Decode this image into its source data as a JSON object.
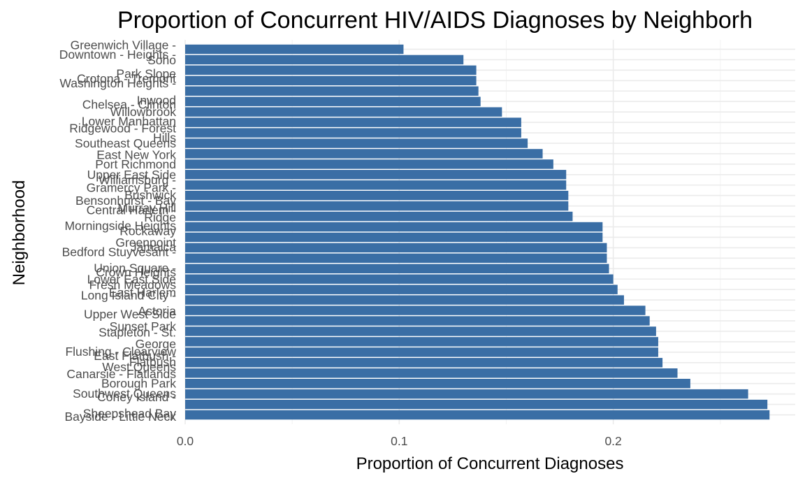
{
  "chart_data": {
    "type": "bar",
    "orientation": "horizontal",
    "title": "Proportion of Concurrent HIV/AIDS Diagnoses by Neighborh",
    "xlabel": "Proportion of Concurrent Diagnoses",
    "ylabel": "Neighborhood",
    "xlim": [
      0,
      0.285
    ],
    "xticks": [
      0.0,
      0.1,
      0.2
    ],
    "xtick_labels": [
      "0.0",
      "0.1",
      "0.2"
    ],
    "grid": true,
    "bar_color": "#3a6ea5",
    "categories": [
      "Greenwich Village - Soho",
      "Downtown - Heights - Slope",
      "Crotona - Tremont",
      "Park Slope",
      "Washington Heights - Inwood",
      "Chelsea - Clinton",
      "Willowbrook",
      "Lower Manhattan",
      "Ridgewood - Forest Hills",
      "Southeast Queens",
      "East New York",
      "Port Richmond",
      "Upper East Side",
      "Williamsburg - Bushwick",
      "Gramercy Park - Murray Hill",
      "Bensonhurst - Bay Ridge",
      "Central Harlem - Morningside Heights",
      "Rockaway",
      "Greenpoint",
      "Bedford Stuyvesant - Crown Heights",
      "Jamaica",
      "Union Square - Lower East Side",
      "Fresh Meadows",
      "Long Island City - Astoria",
      "East Harlem",
      "Upper West Side",
      "Sunset Park",
      "Stapleton - St. George",
      "Flushing - Clearview",
      "East Flatbush - Flatbush",
      "West Queens",
      "Canarsie - Flatlands",
      "Borough Park",
      "Southwest Queens",
      "Coney Island - Sheepshead Bay",
      "Bayside - Little Neck"
    ],
    "values": [
      0.102,
      0.13,
      0.136,
      0.136,
      0.137,
      0.138,
      0.148,
      0.157,
      0.157,
      0.16,
      0.167,
      0.172,
      0.178,
      0.178,
      0.179,
      0.179,
      0.181,
      0.195,
      0.195,
      0.197,
      0.197,
      0.198,
      0.2,
      0.202,
      0.205,
      0.215,
      0.217,
      0.22,
      0.221,
      0.221,
      0.223,
      0.23,
      0.236,
      0.263,
      0.272,
      0.273
    ],
    "visible_labels": [
      {
        "text": "Greenwich Village -",
        "ref_index": 0,
        "offset": -0.4
      },
      {
        "text": "Downtown - Heights -",
        "ref_index": 0,
        "offset": 0.5
      },
      {
        "text": "Soho",
        "ref_index": 1,
        "offset": 0.05
      },
      {
        "text": "Park Slope",
        "ref_index": 2,
        "offset": 0.35
      },
      {
        "text": "Crotona - Tremont",
        "ref_index": 2,
        "offset": 0.8
      },
      {
        "text": "Washington Heights -",
        "ref_index": 3,
        "offset": 0.25
      },
      {
        "text": "Inwood",
        "ref_index": 4,
        "offset": 0.9
      },
      {
        "text": "Chelsea - Clinton",
        "ref_index": 5,
        "offset": 0.3
      },
      {
        "text": "Willowbrook",
        "ref_index": 6,
        "offset": 0.0
      },
      {
        "text": "Lower Manhattan",
        "ref_index": 7,
        "offset": -0.1
      },
      {
        "text": "Ridgewood - Forest",
        "ref_index": 7,
        "offset": 0.55
      },
      {
        "text": "Hills",
        "ref_index": 9,
        "offset": -0.55
      },
      {
        "text": "Southeast Queens",
        "ref_index": 9,
        "offset": 0.0
      },
      {
        "text": "East New York",
        "ref_index": 10,
        "offset": 0.1
      },
      {
        "text": "Port Richmond",
        "ref_index": 11,
        "offset": 0.0
      },
      {
        "text": "Upper East Side",
        "ref_index": 12,
        "offset": 0.0
      },
      {
        "text": "Williamsburg -",
        "ref_index": 12,
        "offset": 0.5
      },
      {
        "text": "Gramercy Park -",
        "ref_index": 13,
        "offset": 0.25
      },
      {
        "text": "Bushwick",
        "ref_index": 14,
        "offset": -0.05
      },
      {
        "text": "Bensonhurst - Bay",
        "ref_index": 14,
        "offset": 0.5
      },
      {
        "text": "Murray Hill",
        "ref_index": 15,
        "offset": 0.2
      },
      {
        "text": "Central Harlem -",
        "ref_index": 16,
        "offset": -0.6
      },
      {
        "text": "Ridge",
        "ref_index": 16,
        "offset": 0.1
      },
      {
        "text": "Morningside Heights",
        "ref_index": 17,
        "offset": -0.1
      },
      {
        "text": "Rockaway",
        "ref_index": 17,
        "offset": 0.4
      },
      {
        "text": "Greenpoint",
        "ref_index": 18,
        "offset": 0.5
      },
      {
        "text": "Jamaica",
        "ref_index": 19,
        "offset": -0.05
      },
      {
        "text": "Bedford Stuyvesant -",
        "ref_index": 19,
        "offset": 0.4
      },
      {
        "text": "Union Square -",
        "ref_index": 20,
        "offset": 0.95
      },
      {
        "text": "Crown Heights",
        "ref_index": 21,
        "offset": 0.35
      },
      {
        "text": "Lower East Side",
        "ref_index": 22,
        "offset": 0.0
      },
      {
        "text": "Fresh Meadows",
        "ref_index": 22,
        "offset": 0.55
      },
      {
        "text": "East Harlem",
        "ref_index": 23,
        "offset": 0.3
      },
      {
        "text": "Long Island City -",
        "ref_index": 23,
        "offset": 0.55
      },
      {
        "text": "Astoria",
        "ref_index": 25,
        "offset": 0.05
      },
      {
        "text": "Upper West Side",
        "ref_index": 25,
        "offset": 0.35
      },
      {
        "text": "Sunset Park",
        "ref_index": 26,
        "offset": 0.55
      },
      {
        "text": "Stapleton - St.",
        "ref_index": 27,
        "offset": 0.1
      },
      {
        "text": "George",
        "ref_index": 28,
        "offset": 0.2
      },
      {
        "text": "Flushing - Clearview",
        "ref_index": 29,
        "offset": -0.05
      },
      {
        "text": "East Flatbush -",
        "ref_index": 29,
        "offset": 0.35
      },
      {
        "text": "Flatbush",
        "ref_index": 30,
        "offset": -0.05
      },
      {
        "text": "West Queens",
        "ref_index": 30,
        "offset": 0.4
      },
      {
        "text": "Canarsie - Flatlands",
        "ref_index": 31,
        "offset": 0.1
      },
      {
        "text": "Borough Park",
        "ref_index": 32,
        "offset": 0.0
      },
      {
        "text": "Southwest Queens",
        "ref_index": 33,
        "offset": -0.05
      },
      {
        "text": "Coney Island -",
        "ref_index": 33,
        "offset": 0.3
      },
      {
        "text": "Sheepshead Bay",
        "ref_index": 34,
        "offset": 0.85
      },
      {
        "text": "Bayside - Little Neck",
        "ref_index": 35,
        "offset": 0.15
      }
    ]
  }
}
